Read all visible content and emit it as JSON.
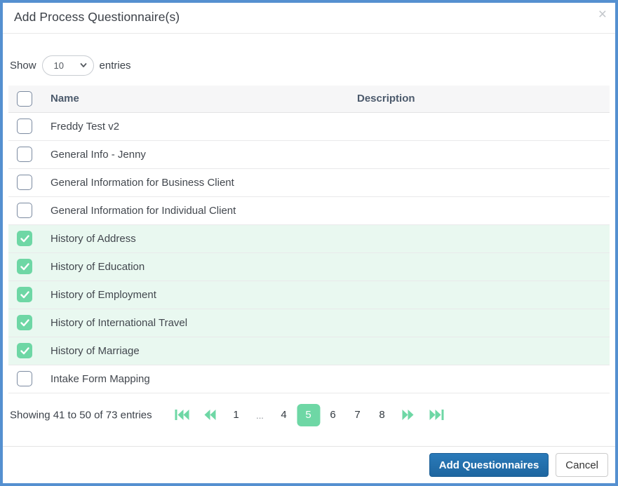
{
  "modal": {
    "title": "Add Process Questionnaire(s)",
    "close_glyph": "×"
  },
  "show_entries": {
    "show_label": "Show",
    "selected_value": "10",
    "entries_label": "entries"
  },
  "table": {
    "select_all_checked": false,
    "columns": [
      {
        "key": "name",
        "label": "Name"
      },
      {
        "key": "description",
        "label": "Description"
      }
    ],
    "rows": [
      {
        "name": "Freddy Test v2",
        "description": "",
        "checked": false
      },
      {
        "name": "General Info - Jenny",
        "description": "",
        "checked": false
      },
      {
        "name": "General Information for Business Client",
        "description": "",
        "checked": false
      },
      {
        "name": "General Information for Individual Client",
        "description": "",
        "checked": false
      },
      {
        "name": "History of Address",
        "description": "",
        "checked": true
      },
      {
        "name": "History of Education",
        "description": "",
        "checked": true
      },
      {
        "name": "History of Employment",
        "description": "",
        "checked": true
      },
      {
        "name": "History of International Travel",
        "description": "",
        "checked": true
      },
      {
        "name": "History of Marriage",
        "description": "",
        "checked": true
      },
      {
        "name": "Intake Form Mapping",
        "description": "",
        "checked": false
      }
    ]
  },
  "pagination": {
    "summary": "Showing 41 to 50 of 73 entries",
    "active_page": "5",
    "items": [
      {
        "type": "nav",
        "name": "first"
      },
      {
        "type": "nav",
        "name": "prev"
      },
      {
        "type": "page",
        "label": "1"
      },
      {
        "type": "ellipsis",
        "label": "..."
      },
      {
        "type": "page",
        "label": "4"
      },
      {
        "type": "page",
        "label": "5"
      },
      {
        "type": "page",
        "label": "6"
      },
      {
        "type": "page",
        "label": "7"
      },
      {
        "type": "page",
        "label": "8"
      },
      {
        "type": "nav",
        "name": "next"
      },
      {
        "type": "nav",
        "name": "last"
      }
    ]
  },
  "footer": {
    "add_label": "Add Questionnaires",
    "cancel_label": "Cancel"
  },
  "colors": {
    "modal_border": "#5590d0",
    "accent_green": "#6ed7a5",
    "checked_row_bg": "#e9f8f0",
    "header_row_bg": "#f6f6f7",
    "primary_button_top": "#2a7ab9",
    "primary_button_bottom": "#1e66a0"
  }
}
